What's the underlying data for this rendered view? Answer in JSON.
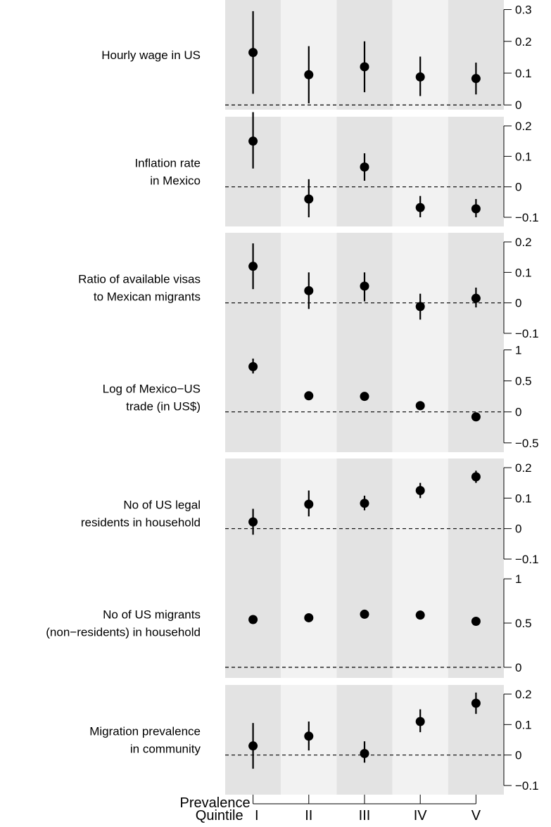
{
  "chart_data": {
    "type": "scatter",
    "xlabel": "Prevalence\nQuintile",
    "categories": [
      "I",
      "II",
      "III",
      "IV",
      "V"
    ],
    "panels": [
      {
        "label": [
          "Hourly wage in US"
        ],
        "ylim": [
          -0.015,
          0.33
        ],
        "yticks": [
          0,
          0.1,
          0.2,
          0.3
        ],
        "yticklabels": [
          "0",
          "0.1",
          "0.2",
          "0.3"
        ],
        "points": [
          {
            "category": "I",
            "estimate": 0.165,
            "lower": 0.035,
            "upper": 0.295
          },
          {
            "category": "II",
            "estimate": 0.095,
            "lower": 0.005,
            "upper": 0.185
          },
          {
            "category": "III",
            "estimate": 0.12,
            "lower": 0.04,
            "upper": 0.2
          },
          {
            "category": "IV",
            "estimate": 0.088,
            "lower": 0.028,
            "upper": 0.152
          },
          {
            "category": "V",
            "estimate": 0.083,
            "lower": 0.033,
            "upper": 0.133
          }
        ]
      },
      {
        "label": [
          "Inflation rate",
          "in Mexico"
        ],
        "ylim": [
          -0.13,
          0.23
        ],
        "yticks": [
          -0.1,
          0,
          0.1,
          0.2
        ],
        "yticklabels": [
          "−0.1",
          "0",
          "0.1",
          "0.2"
        ],
        "points": [
          {
            "category": "I",
            "estimate": 0.15,
            "lower": 0.06,
            "upper": 0.245
          },
          {
            "category": "II",
            "estimate": -0.04,
            "lower": -0.1,
            "upper": 0.025
          },
          {
            "category": "III",
            "estimate": 0.065,
            "lower": 0.02,
            "upper": 0.11
          },
          {
            "category": "IV",
            "estimate": -0.068,
            "lower": -0.1,
            "upper": -0.03
          },
          {
            "category": "V",
            "estimate": -0.072,
            "lower": -0.1,
            "upper": -0.04
          }
        ]
      },
      {
        "label": [
          "Ratio of available visas",
          "to Mexican migrants"
        ],
        "ylim": [
          -0.13,
          0.23
        ],
        "yticks": [
          -0.1,
          0,
          0.1,
          0.2
        ],
        "yticklabels": [
          "−0.1",
          "0",
          "0.1",
          "0.2"
        ],
        "points": [
          {
            "category": "I",
            "estimate": 0.12,
            "lower": 0.045,
            "upper": 0.195
          },
          {
            "category": "II",
            "estimate": 0.04,
            "lower": -0.02,
            "upper": 0.1
          },
          {
            "category": "III",
            "estimate": 0.055,
            "lower": 0.005,
            "upper": 0.1
          },
          {
            "category": "IV",
            "estimate": -0.012,
            "lower": -0.055,
            "upper": 0.03
          },
          {
            "category": "V",
            "estimate": 0.015,
            "lower": -0.015,
            "upper": 0.05
          }
        ]
      },
      {
        "label": [
          "Log of Mexico−US",
          "trade (in US$)"
        ],
        "ylim": [
          -0.65,
          1.12
        ],
        "yticks": [
          -0.5,
          0,
          0.5,
          1
        ],
        "yticklabels": [
          "−0.5",
          "0",
          "0.5",
          "1"
        ],
        "points": [
          {
            "category": "I",
            "estimate": 0.73,
            "lower": 0.62,
            "upper": 0.86
          },
          {
            "category": "II",
            "estimate": 0.26,
            "lower": 0.2,
            "upper": 0.32
          },
          {
            "category": "III",
            "estimate": 0.25,
            "lower": 0.2,
            "upper": 0.3
          },
          {
            "category": "IV",
            "estimate": 0.1,
            "lower": 0.06,
            "upper": 0.14
          },
          {
            "category": "V",
            "estimate": -0.08,
            "lower": -0.12,
            "upper": -0.04
          }
        ]
      },
      {
        "label": [
          "No of US legal",
          "residents in household"
        ],
        "ylim": [
          -0.13,
          0.23
        ],
        "yticks": [
          -0.1,
          0,
          0.1,
          0.2
        ],
        "yticklabels": [
          "−0.1",
          "0",
          "0.1",
          "0.2"
        ],
        "points": [
          {
            "category": "I",
            "estimate": 0.022,
            "lower": -0.02,
            "upper": 0.065
          },
          {
            "category": "II",
            "estimate": 0.08,
            "lower": 0.04,
            "upper": 0.125
          },
          {
            "category": "III",
            "estimate": 0.083,
            "lower": 0.06,
            "upper": 0.108
          },
          {
            "category": "IV",
            "estimate": 0.125,
            "lower": 0.1,
            "upper": 0.15
          },
          {
            "category": "V",
            "estimate": 0.17,
            "lower": 0.15,
            "upper": 0.19
          }
        ]
      },
      {
        "label": [
          "No of US migrants",
          "(non−residents) in household"
        ],
        "ylim": [
          -0.12,
          1.12
        ],
        "yticks": [
          0,
          0.5,
          1
        ],
        "yticklabels": [
          "0",
          "0.5",
          "1"
        ],
        "points": [
          {
            "category": "I",
            "estimate": 0.54,
            "lower": 0.54,
            "upper": 0.54
          },
          {
            "category": "II",
            "estimate": 0.56,
            "lower": 0.56,
            "upper": 0.56
          },
          {
            "category": "III",
            "estimate": 0.6,
            "lower": 0.6,
            "upper": 0.6
          },
          {
            "category": "IV",
            "estimate": 0.59,
            "lower": 0.59,
            "upper": 0.59
          },
          {
            "category": "V",
            "estimate": 0.52,
            "lower": 0.52,
            "upper": 0.52
          }
        ]
      },
      {
        "label": [
          "Migration prevalence",
          "in community"
        ],
        "ylim": [
          -0.13,
          0.23
        ],
        "yticks": [
          -0.1,
          0,
          0.1,
          0.2
        ],
        "yticklabels": [
          "−0.1",
          "0",
          "0.1",
          "0.2"
        ],
        "points": [
          {
            "category": "I",
            "estimate": 0.03,
            "lower": -0.045,
            "upper": 0.105
          },
          {
            "category": "II",
            "estimate": 0.062,
            "lower": 0.015,
            "upper": 0.11
          },
          {
            "category": "III",
            "estimate": 0.005,
            "lower": -0.025,
            "upper": 0.045
          },
          {
            "category": "IV",
            "estimate": 0.11,
            "lower": 0.075,
            "upper": 0.15
          },
          {
            "category": "V",
            "estimate": 0.17,
            "lower": 0.135,
            "upper": 0.205
          }
        ]
      }
    ],
    "band_colors": [
      "#e3e3e3",
      "#f2f2f2"
    ],
    "reference_line": 0,
    "grid": false,
    "legend": "none"
  }
}
